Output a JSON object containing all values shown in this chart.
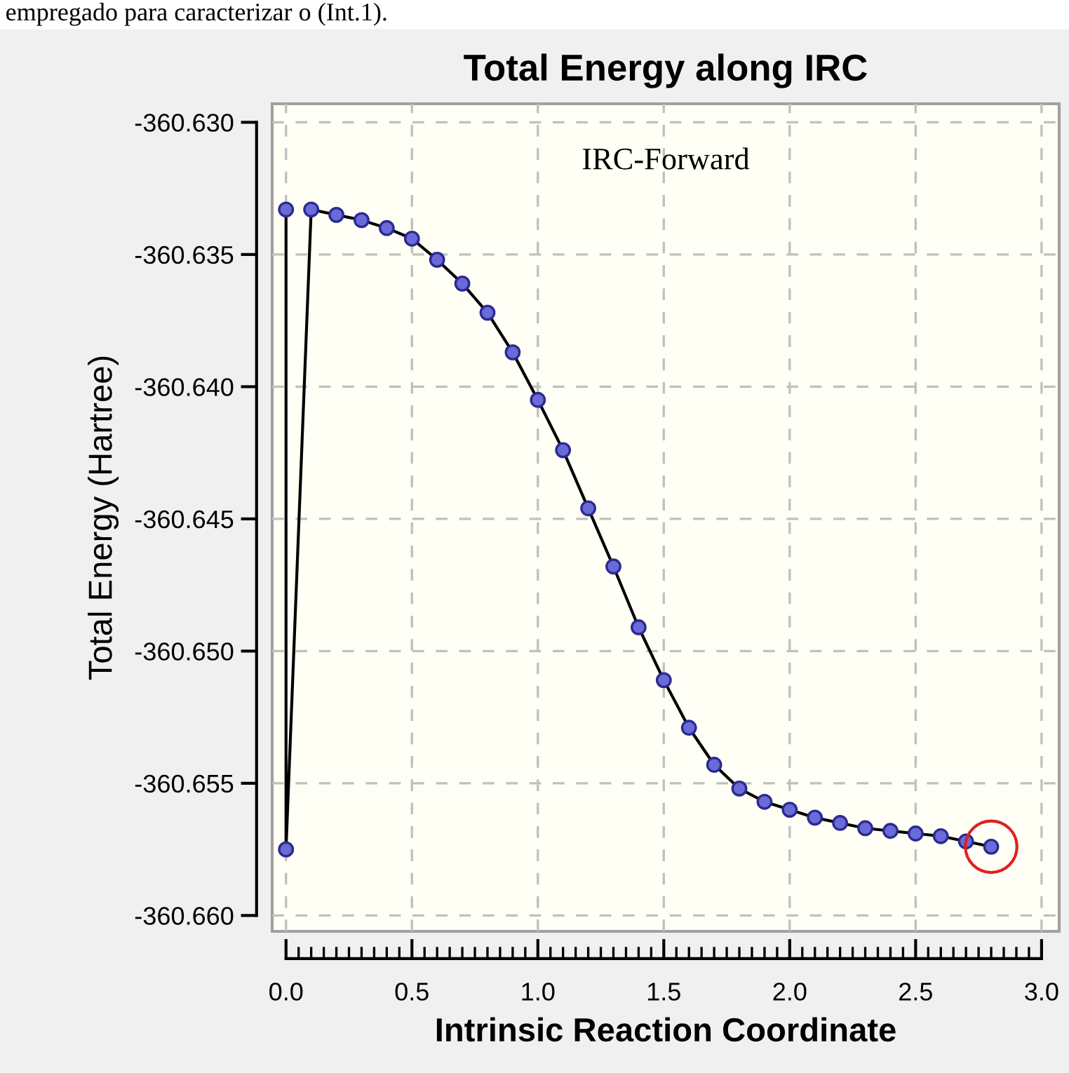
{
  "chart_data": {
    "type": "line",
    "title": "Total Energy along IRC",
    "xlabel": "Intrinsic Reaction Coordinate",
    "ylabel": "Total Energy (Hartree)",
    "annotations": [
      "IRC-Forward",
      "empregado para caracterizar o (Int.1)."
    ],
    "series": [
      {
        "color": "#6a6ad8",
        "marker": "circle",
        "x": [
          0.0,
          0.0,
          0.1,
          0.2,
          0.3,
          0.4,
          0.5,
          0.6,
          0.7,
          0.8,
          0.9,
          1.0,
          1.1,
          1.2,
          1.3,
          1.4,
          1.5,
          1.6,
          1.7,
          1.8,
          1.9,
          2.0,
          2.1,
          2.2,
          2.3,
          2.4,
          2.5,
          2.6,
          2.7,
          2.8
        ],
        "values": [
          -360.6333,
          -360.6575,
          -360.6333,
          -360.6335,
          -360.6337,
          -360.634,
          -360.6344,
          -360.6352,
          -360.6361,
          -360.6372,
          -360.6387,
          -360.6405,
          -360.6424,
          -360.6446,
          -360.6468,
          -360.6491,
          -360.6511,
          -360.6529,
          -360.6543,
          -360.6552,
          -360.6557,
          -360.656,
          -360.6563,
          -360.6565,
          -360.6567,
          -360.6568,
          -360.6569,
          -360.657,
          -360.6572,
          -360.6574
        ]
      },
      {
        "type": "scatter",
        "color": "#e02020",
        "marker": "circle",
        "x": [
          2.8
        ],
        "values": [
          -360.6574
        ]
      }
    ],
    "xlim": [
      -0.055,
      3.07
    ],
    "ylim": [
      -360.6606,
      -360.6293
    ],
    "xticks": [
      {
        "value": 0.0,
        "label": "0.0"
      },
      {
        "value": 0.05,
        "label": null
      },
      {
        "value": 0.1,
        "label": null
      },
      {
        "value": 0.15,
        "label": null
      },
      {
        "value": 0.2,
        "label": null
      },
      {
        "value": 0.25,
        "label": null
      },
      {
        "value": 0.3,
        "label": null
      },
      {
        "value": 0.35,
        "label": null
      },
      {
        "value": 0.4,
        "label": null
      },
      {
        "value": 0.45,
        "label": null
      },
      {
        "value": 0.5,
        "label": "0.5"
      },
      {
        "value": 0.55,
        "label": null
      },
      {
        "value": 0.6,
        "label": null
      },
      {
        "value": 0.65,
        "label": null
      },
      {
        "value": 0.7,
        "label": null
      },
      {
        "value": 0.75,
        "label": null
      },
      {
        "value": 0.8,
        "label": null
      },
      {
        "value": 0.85,
        "label": null
      },
      {
        "value": 0.9,
        "label": null
      },
      {
        "value": 0.95,
        "label": null
      },
      {
        "value": 1.0,
        "label": "1.0"
      },
      {
        "value": 1.05,
        "label": null
      },
      {
        "value": 1.1,
        "label": null
      },
      {
        "value": 1.15,
        "label": null
      },
      {
        "value": 1.2,
        "label": null
      },
      {
        "value": 1.25,
        "label": null
      },
      {
        "value": 1.3,
        "label": null
      },
      {
        "value": 1.35,
        "label": null
      },
      {
        "value": 1.4,
        "label": null
      },
      {
        "value": 1.45,
        "label": null
      },
      {
        "value": 1.5,
        "label": "1.5"
      },
      {
        "value": 1.55,
        "label": null
      },
      {
        "value": 1.6,
        "label": null
      },
      {
        "value": 1.65,
        "label": null
      },
      {
        "value": 1.7,
        "label": null
      },
      {
        "value": 1.75,
        "label": null
      },
      {
        "value": 1.8,
        "label": null
      },
      {
        "value": 1.85,
        "label": null
      },
      {
        "value": 1.9,
        "label": null
      },
      {
        "value": 1.95,
        "label": null
      },
      {
        "value": 2.0,
        "label": "2.0"
      },
      {
        "value": 2.05,
        "label": null
      },
      {
        "value": 2.1,
        "label": null
      },
      {
        "value": 2.15,
        "label": null
      },
      {
        "value": 2.2,
        "label": null
      },
      {
        "value": 2.25,
        "label": null
      },
      {
        "value": 2.3,
        "label": null
      },
      {
        "value": 2.35,
        "label": null
      },
      {
        "value": 2.4,
        "label": null
      },
      {
        "value": 2.45,
        "label": null
      },
      {
        "value": 2.5,
        "label": "2.5"
      },
      {
        "value": 2.55,
        "label": null
      },
      {
        "value": 2.6,
        "label": null
      },
      {
        "value": 2.65,
        "label": null
      },
      {
        "value": 2.7,
        "label": null
      },
      {
        "value": 2.75,
        "label": null
      },
      {
        "value": 2.8,
        "label": null
      },
      {
        "value": 2.85,
        "label": null
      },
      {
        "value": 2.9,
        "label": null
      },
      {
        "value": 2.95,
        "label": null
      },
      {
        "value": 3.0,
        "label": "3.0"
      }
    ],
    "yticks": [
      {
        "value": -360.63,
        "label": "-360.630"
      },
      {
        "value": -360.635,
        "label": "-360.635"
      },
      {
        "value": -360.64,
        "label": "-360.640"
      },
      {
        "value": -360.645,
        "label": "-360.645"
      },
      {
        "value": -360.65,
        "label": "-360.650"
      },
      {
        "value": -360.655,
        "label": "-360.655"
      },
      {
        "value": -360.66,
        "label": "-360.660"
      }
    ],
    "grid": true
  }
}
